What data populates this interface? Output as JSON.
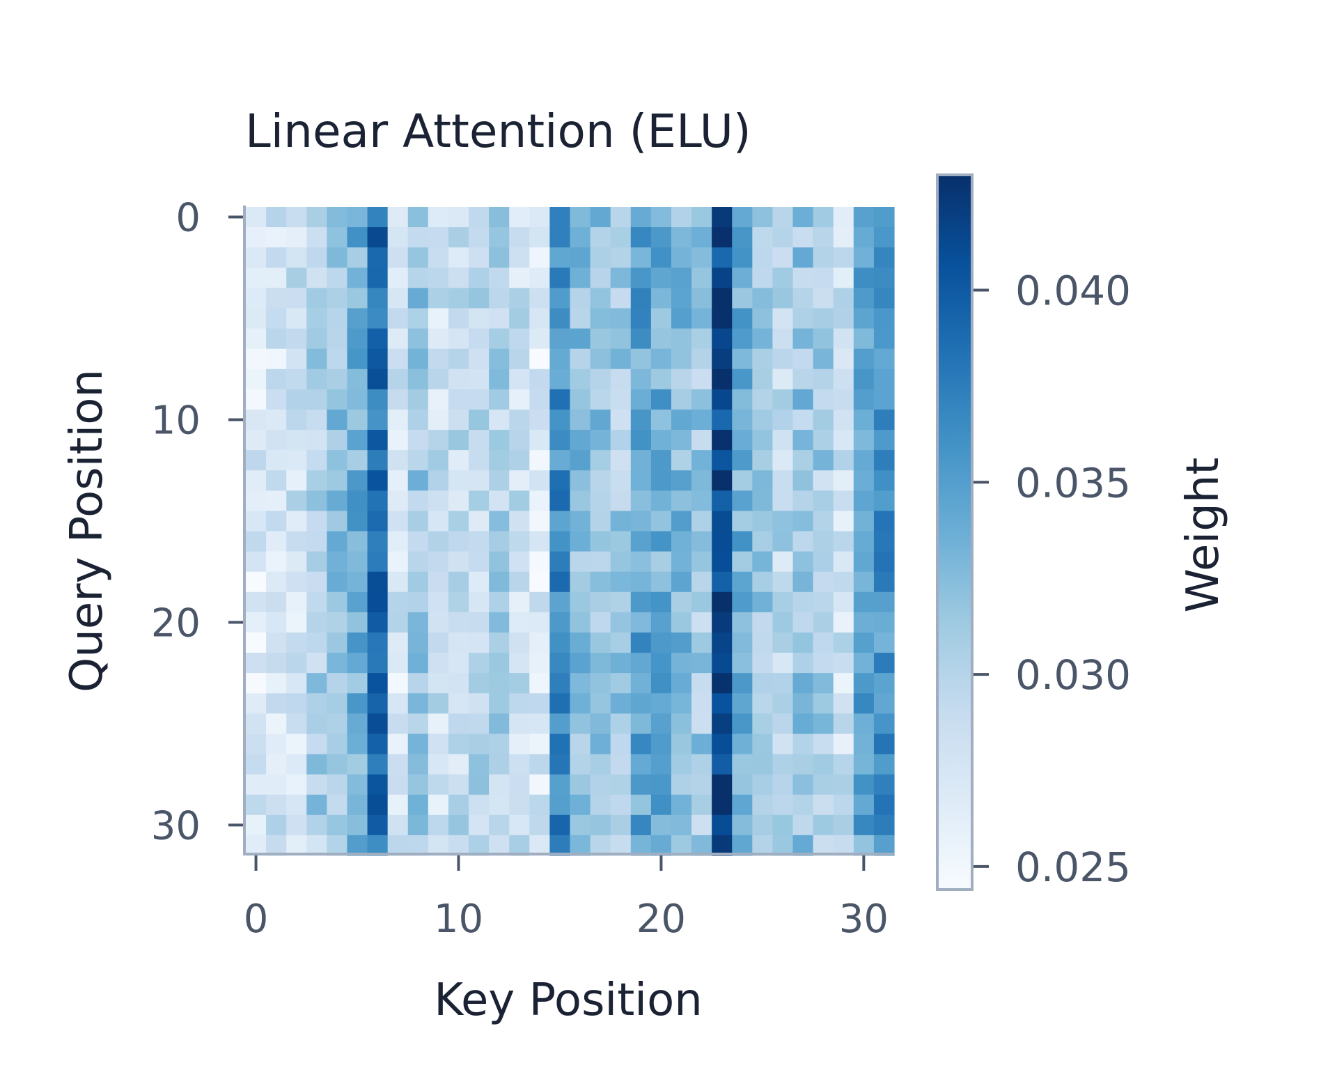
{
  "chart_data": {
    "type": "heatmap",
    "title": "Linear Attention (ELU)",
    "xlabel": "Key Position",
    "ylabel": "Query Position",
    "x_ticks": [
      0,
      10,
      20,
      30
    ],
    "y_ticks": [
      0,
      10,
      20,
      30
    ],
    "n_rows": 32,
    "n_cols": 32,
    "colorbar": {
      "label": "Weight",
      "min": 0.0244,
      "max": 0.043,
      "ticks": [
        0.025,
        0.03,
        0.035,
        0.04
      ],
      "tick_labels": [
        "0.025",
        "0.030",
        "0.035",
        "0.040"
      ],
      "colormap": "Blues"
    },
    "column_mean_weights": [
      0.0268,
      0.0278,
      0.0282,
      0.0305,
      0.0318,
      0.0335,
      0.0385,
      0.0275,
      0.0315,
      0.0285,
      0.029,
      0.0295,
      0.03,
      0.0285,
      0.027,
      0.0365,
      0.0325,
      0.032,
      0.031,
      0.0345,
      0.0335,
      0.0325,
      0.031,
      0.0415,
      0.0335,
      0.0315,
      0.0295,
      0.0315,
      0.0305,
      0.028,
      0.0345,
      0.036
    ],
    "grid": false
  },
  "colors": {
    "axis": "#a0aec0",
    "title": "#1a2233",
    "tick_text": "#4a5568",
    "cmap_light": "#f7fbff",
    "cmap_dark": "#08306b"
  }
}
